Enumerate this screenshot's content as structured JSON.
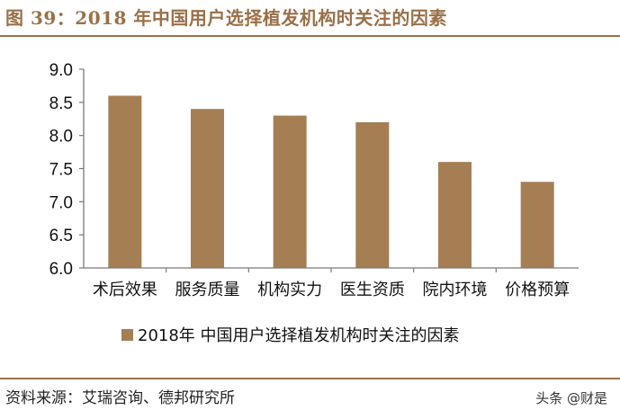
{
  "header": {
    "title": "图 39：2018 年中国用户选择植发机构时关注的因素"
  },
  "footer": {
    "source": "资料来源：艾瑞咨询、德邦研究所",
    "watermark": "头条 @财是"
  },
  "colors": {
    "accent": "#9a7048",
    "bar": "#a57e54"
  },
  "chart_data": {
    "type": "bar",
    "categories": [
      "术后效果",
      "服务质量",
      "机构实力",
      "医生资质",
      "院内环境",
      "价格预算"
    ],
    "series": [
      {
        "name": "2018年 中国用户选择植发机构时关注的因素",
        "values": [
          8.6,
          8.4,
          8.3,
          8.2,
          7.6,
          7.3
        ]
      }
    ],
    "yticks": [
      "6.0",
      "6.5",
      "7.0",
      "7.5",
      "8.0",
      "8.5",
      "9.0"
    ],
    "ylim": [
      6.0,
      9.0
    ],
    "grid": false,
    "legend": "bottom"
  }
}
